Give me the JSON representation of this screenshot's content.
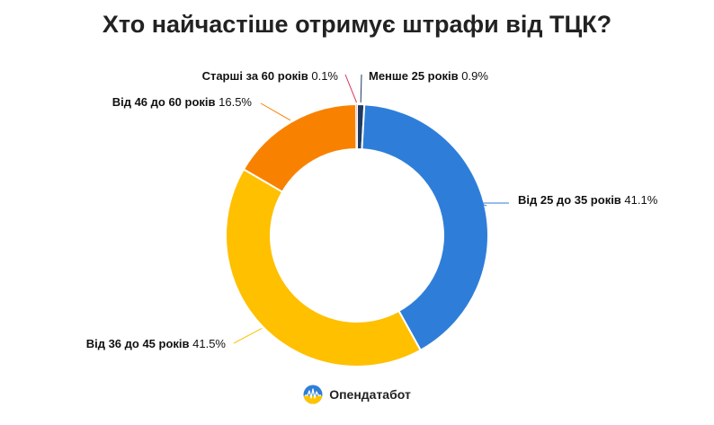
{
  "title": "Хто найчастіше отримує штрафи від ТЦК?",
  "brand": {
    "name": "Опендатабот",
    "icon": "opendatabot-logo-icon"
  },
  "chart_data": {
    "type": "pie",
    "title": "Хто найчастіше отримує штрафи від ТЦК?",
    "donut": true,
    "legend": "none",
    "slices": [
      {
        "label": "Менше 25 років",
        "value": 0.9,
        "display": "0.9%",
        "color": "#1f3a5f"
      },
      {
        "label": "Від 25 до 35 років",
        "value": 41.1,
        "display": "41.1%",
        "color": "#2e7ed9"
      },
      {
        "label": "Від 36 до 45 років",
        "value": 41.5,
        "display": "41.5%",
        "color": "#ffc000"
      },
      {
        "label": "Від 46 до 60 років",
        "value": 16.5,
        "display": "16.5%",
        "color": "#f88200"
      },
      {
        "label": "Старші за 60 років",
        "value": 0.1,
        "display": "0.1%",
        "color": "#d8315b"
      }
    ]
  }
}
